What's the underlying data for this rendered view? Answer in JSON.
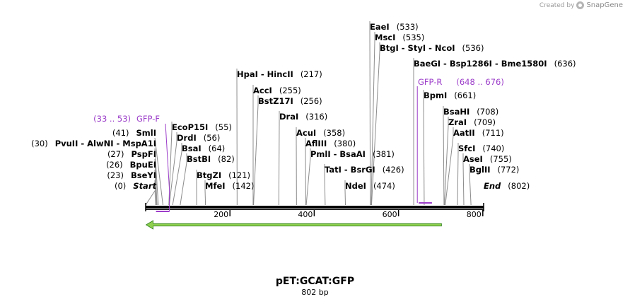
{
  "branding": {
    "created_by": "Created by",
    "app": "SnapGene"
  },
  "plasmid": {
    "name": "pET:GCAT:GFP",
    "length_label": "802 bp",
    "length": 802
  },
  "colors": {
    "primer": "#9b3cc9",
    "feature": "#8fd14f",
    "feature_border": "#2e7d1e",
    "backbone": "#000000"
  },
  "axis": {
    "ticks": [
      200,
      400,
      600,
      800
    ]
  },
  "sites": [
    {
      "id": "start",
      "label": "Start",
      "pos": 0,
      "pos_label": "(0)",
      "italic": true,
      "side": "left"
    },
    {
      "id": "bseyi",
      "label": "BseYI",
      "pos": 23,
      "pos_label": "(23)",
      "side": "left"
    },
    {
      "id": "bpuei",
      "label": "BpuEI",
      "pos": 26,
      "pos_label": "(26)",
      "side": "left"
    },
    {
      "id": "pspfi",
      "label": "PspFI",
      "pos": 27,
      "pos_label": "(27)",
      "side": "left"
    },
    {
      "id": "pvuii",
      "label": "PvuII  -  AlwNI  -  MspA1I",
      "pos": 30,
      "pos_label": "(30)",
      "side": "left"
    },
    {
      "id": "smli",
      "label": "SmlI",
      "pos": 41,
      "pos_label": "(41)",
      "side": "left"
    },
    {
      "id": "ecop15i",
      "label": "EcoP15I",
      "pos": 55,
      "pos_label": "(55)",
      "side": "right"
    },
    {
      "id": "drdi",
      "label": "DrdI",
      "pos": 56,
      "pos_label": "(56)",
      "side": "right"
    },
    {
      "id": "bsai",
      "label": "BsaI",
      "pos": 64,
      "pos_label": "(64)",
      "side": "right"
    },
    {
      "id": "bstbi",
      "label": "BstBI",
      "pos": 82,
      "pos_label": "(82)",
      "side": "right"
    },
    {
      "id": "btgzi",
      "label": "BtgZI",
      "pos": 121,
      "pos_label": "(121)",
      "side": "right"
    },
    {
      "id": "mfei",
      "label": "MfeI",
      "pos": 142,
      "pos_label": "(142)",
      "side": "right"
    },
    {
      "id": "hpai",
      "label": "HpaI  -  HincII",
      "pos": 217,
      "pos_label": "(217)",
      "side": "right"
    },
    {
      "id": "acci",
      "label": "AccI",
      "pos": 255,
      "pos_label": "(255)",
      "side": "right"
    },
    {
      "id": "bstz17i",
      "label": "BstZ17I",
      "pos": 256,
      "pos_label": "(256)",
      "side": "right"
    },
    {
      "id": "drai",
      "label": "DraI",
      "pos": 316,
      "pos_label": "(316)",
      "side": "right"
    },
    {
      "id": "acui",
      "label": "AcuI",
      "pos": 358,
      "pos_label": "(358)",
      "side": "right"
    },
    {
      "id": "aflIII",
      "label": "AflIII",
      "pos": 380,
      "pos_label": "(380)",
      "side": "right"
    },
    {
      "id": "pmli",
      "label": "PmlI  -  BsaAI",
      "pos": 381,
      "pos_label": "(381)",
      "side": "right"
    },
    {
      "id": "tati",
      "label": "TatI  -  BsrGI",
      "pos": 426,
      "pos_label": "(426)",
      "side": "right"
    },
    {
      "id": "ndei",
      "label": "NdeI",
      "pos": 474,
      "pos_label": "(474)",
      "side": "right"
    },
    {
      "id": "eaei",
      "label": "EaeI",
      "pos": 533,
      "pos_label": "(533)",
      "side": "right"
    },
    {
      "id": "msci",
      "label": "MscI",
      "pos": 535,
      "pos_label": "(535)",
      "side": "right"
    },
    {
      "id": "btgi",
      "label": "BtgI  -  StyI  -  NcoI",
      "pos": 536,
      "pos_label": "(536)",
      "side": "right"
    },
    {
      "id": "baegi",
      "label": "BaeGI  -  Bsp1286I  -  Bme1580I",
      "pos": 636,
      "pos_label": "(636)",
      "side": "right"
    },
    {
      "id": "bpmi",
      "label": "BpmI",
      "pos": 661,
      "pos_label": "(661)",
      "side": "right"
    },
    {
      "id": "bsahi",
      "label": "BsaHI",
      "pos": 708,
      "pos_label": "(708)",
      "side": "right"
    },
    {
      "id": "zrai",
      "label": "ZraI",
      "pos": 709,
      "pos_label": "(709)",
      "side": "right"
    },
    {
      "id": "aatii",
      "label": "AatII",
      "pos": 711,
      "pos_label": "(711)",
      "side": "right"
    },
    {
      "id": "sfci",
      "label": "SfcI",
      "pos": 740,
      "pos_label": "(740)",
      "side": "right"
    },
    {
      "id": "asei",
      "label": "AseI",
      "pos": 755,
      "pos_label": "(755)",
      "side": "right"
    },
    {
      "id": "bglii",
      "label": "BglII",
      "pos": 772,
      "pos_label": "(772)",
      "side": "right"
    },
    {
      "id": "end",
      "label": "End",
      "pos": 802,
      "pos_label": "(802)",
      "italic": true,
      "side": "right"
    }
  ],
  "primers": [
    {
      "id": "gfp-f",
      "name": "GFP-F",
      "range_label": "(33 .. 53)",
      "start": 33,
      "end": 53,
      "strand": "forward",
      "side": "left"
    },
    {
      "id": "gfp-r",
      "name": "GFP-R",
      "range_label": "(648 .. 676)",
      "start": 648,
      "end": 676,
      "strand": "reverse",
      "side": "right"
    }
  ],
  "features": [
    {
      "id": "gfp-arrow",
      "start": 1,
      "end": 702,
      "direction": "reverse"
    }
  ]
}
